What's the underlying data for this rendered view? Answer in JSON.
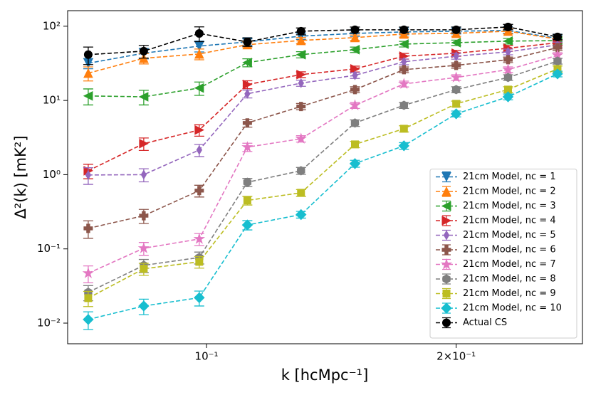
{
  "chart_data": {
    "type": "line",
    "log_x": true,
    "log_y": true,
    "xlabel": "k [hcMpc⁻¹]",
    "ylabel": "Δ²(k) [mK²]",
    "x": [
      0.072,
      0.084,
      0.098,
      0.112,
      0.13,
      0.151,
      0.173,
      0.2,
      0.231,
      0.265
    ],
    "xlim": [
      0.068,
      0.284
    ],
    "xticks": [
      {
        "value": 0.1,
        "label": "10⁻¹"
      },
      {
        "value": 0.2,
        "label": "2×10⁻¹"
      }
    ],
    "ylim": [
      0.00527,
      162
    ],
    "yticks": [
      {
        "value": 0.01,
        "label": "10⁻²"
      },
      {
        "value": 0.1,
        "label": "10⁻¹"
      },
      {
        "value": 1,
        "label": "10⁰"
      },
      {
        "value": 10,
        "label": "10¹"
      },
      {
        "value": 100,
        "label": "10²"
      }
    ],
    "legend": "lower right",
    "series": [
      {
        "name": "21cm Model, nc = 1",
        "color": "#1f77b4",
        "marker": "tri-down",
        "values": [
          31.7,
          43.3,
          54,
          61.5,
          73.5,
          80,
          83.8,
          85.7,
          87.6,
          68.7
        ],
        "errors": [
          5,
          7,
          9,
          6,
          7,
          7,
          7,
          7,
          7,
          6
        ]
      },
      {
        "name": "21cm Model, nc = 2",
        "color": "#ff7f0e",
        "marker": "tri-up",
        "values": [
          23.3,
          37,
          42.3,
          56.4,
          64.3,
          70.3,
          78.5,
          80.2,
          85.7,
          67
        ],
        "errors": [
          5,
          6,
          7,
          5,
          6,
          6,
          7,
          7,
          7,
          6
        ]
      },
      {
        "name": "21cm Model, nc = 3",
        "color": "#2ca02c",
        "marker": "tri-left",
        "values": [
          11.5,
          11.2,
          14.7,
          32.4,
          41.4,
          48.3,
          57.5,
          60,
          63,
          64
        ],
        "errors": [
          2.8,
          2.5,
          3,
          4,
          4,
          4,
          5,
          5,
          5.5,
          5.5
        ]
      },
      {
        "name": "21cm Model, nc = 4",
        "color": "#d62728",
        "marker": "tri-right",
        "values": [
          1.13,
          2.62,
          4.0,
          16.4,
          22.3,
          26.6,
          39.5,
          43.3,
          50.5,
          60
        ],
        "errors": [
          0.25,
          0.5,
          0.7,
          2,
          2,
          2.4,
          3.5,
          4,
          4.5,
          5
        ]
      },
      {
        "name": "21cm Model, nc = 5",
        "color": "#9467bd",
        "marker": "thin-diamond",
        "values": [
          0.99,
          1.0,
          2.15,
          12.3,
          17.1,
          21.8,
          33.2,
          39.5,
          45.2,
          56
        ],
        "errors": [
          0.25,
          0.2,
          0.4,
          1.5,
          1.6,
          2,
          3,
          3.5,
          4,
          5
        ]
      },
      {
        "name": "21cm Model, nc = 6",
        "color": "#8c564b",
        "marker": "plus",
        "values": [
          0.189,
          0.28,
          0.61,
          4.97,
          8.3,
          14.0,
          26,
          29.7,
          35.4,
          51.5
        ],
        "errors": [
          0.05,
          0.06,
          0.11,
          0.6,
          0.8,
          1.3,
          2.3,
          2.6,
          3,
          4.5
        ]
      },
      {
        "name": "21cm Model, nc = 7",
        "color": "#e377c2",
        "marker": "star",
        "values": [
          0.047,
          0.102,
          0.136,
          2.35,
          3.05,
          8.6,
          16.7,
          20.4,
          26,
          40.5
        ],
        "errors": [
          0.012,
          0.02,
          0.025,
          0.3,
          0.3,
          0.8,
          1.5,
          1.8,
          2.3,
          3.5
        ]
      },
      {
        "name": "21cm Model, nc = 8",
        "color": "#7f7f7f",
        "marker": "hexagon",
        "values": [
          0.026,
          0.06,
          0.0766,
          0.79,
          1.13,
          4.97,
          8.6,
          14.0,
          20.4,
          33.9
        ],
        "errors": [
          0.006,
          0.012,
          0.014,
          0.1,
          0.12,
          0.5,
          0.8,
          1.3,
          1.8,
          3
        ]
      },
      {
        "name": "21cm Model, nc = 9",
        "color": "#bcbd22",
        "marker": "square",
        "values": [
          0.0217,
          0.054,
          0.067,
          0.45,
          0.57,
          2.56,
          4.16,
          9.0,
          14.0,
          26.6
        ],
        "errors": [
          0.005,
          0.01,
          0.012,
          0.06,
          0.06,
          0.25,
          0.4,
          0.8,
          1.3,
          2.5
        ]
      },
      {
        "name": "21cm Model, nc = 10",
        "color": "#17becf",
        "marker": "diamond",
        "values": [
          0.0112,
          0.017,
          0.022,
          0.21,
          0.29,
          1.41,
          2.45,
          6.6,
          11.2,
          22.8
        ],
        "errors": [
          0.003,
          0.004,
          0.005,
          0.03,
          0.03,
          0.15,
          0.25,
          0.6,
          1.0,
          2.0
        ]
      },
      {
        "name": "Actual CS",
        "color": "#000000",
        "marker": "circle",
        "values": [
          41.4,
          46.2,
          80,
          61.5,
          85.7,
          89.5,
          89.5,
          89.5,
          97.8,
          71.8
        ],
        "errors": [
          11,
          9,
          18,
          8,
          9,
          8,
          8,
          8,
          8,
          6
        ]
      }
    ]
  }
}
